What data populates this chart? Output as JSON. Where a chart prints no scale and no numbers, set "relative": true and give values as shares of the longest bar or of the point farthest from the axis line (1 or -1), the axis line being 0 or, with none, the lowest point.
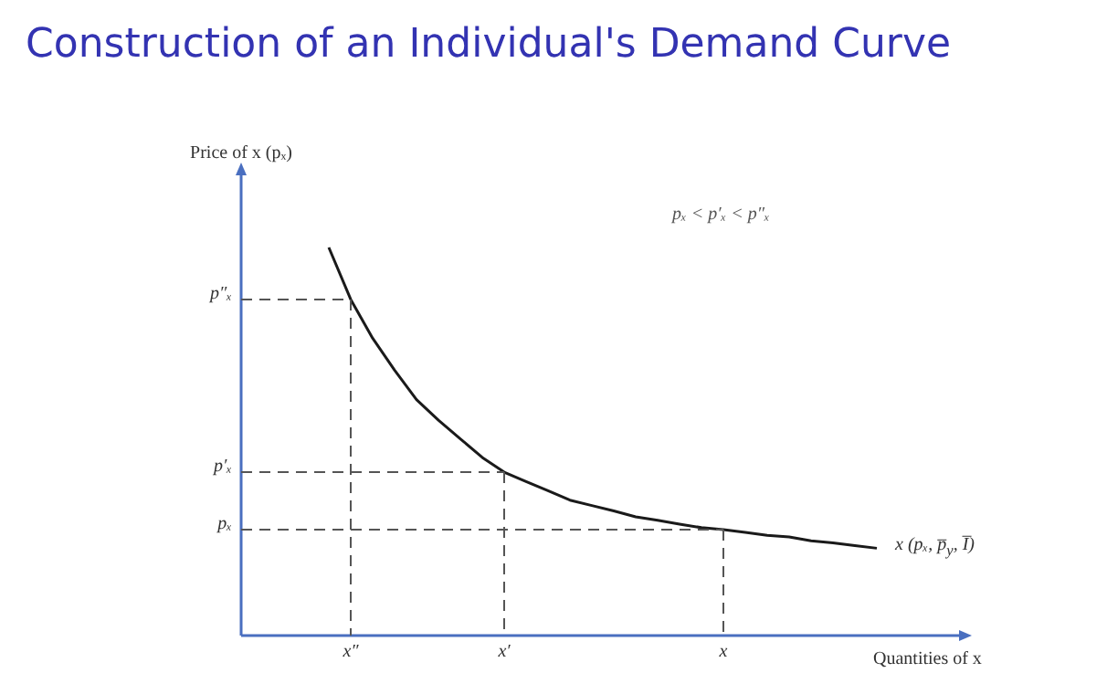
{
  "chart_data": {
    "type": "line",
    "title": "Construction of an Individual's Demand Curve",
    "ylabel": "Price of x (pₓ)",
    "xlabel": "Quantities of x",
    "relative": true,
    "legend": false,
    "marker": "none",
    "line_style": "solid",
    "categories": [
      null,
      "x″",
      null,
      null,
      null,
      null,
      null,
      null,
      "x′",
      null,
      null,
      null,
      null,
      null,
      null,
      null,
      null,
      null,
      "x",
      null,
      null,
      null,
      null,
      null,
      null,
      null
    ],
    "series": [
      {
        "name": "x (pₓ, p̅$_{y}$, I̅)",
        "color": "#1a1a1a",
        "values": [
          1,
          0.866,
          0.766,
          0.684,
          0.608,
          0.555,
          0.507,
          0.459,
          0.421,
          0.397,
          0.373,
          0.349,
          0.335,
          0.321,
          0.306,
          0.297,
          0.287,
          0.278,
          0.273,
          0.266,
          0.258,
          0.254,
          0.244,
          0.239,
          0.232,
          0.225
        ]
      }
    ],
    "annotations": [
      "pₓ < p′ₓ < p″ₓ"
    ],
    "ref_lines": [
      {
        "axis": "y",
        "value": 0.866,
        "label": "p″ₓ",
        "color": "#555555",
        "line_style": "dashed"
      },
      {
        "axis": "y",
        "value": 0.421,
        "label": "p′ₓ",
        "color": "#555555",
        "line_style": "dashed"
      },
      {
        "axis": "y",
        "value": 0.273,
        "label": "pₓ",
        "color": "#555555",
        "line_style": "dashed"
      },
      {
        "axis": "x",
        "value": "x″",
        "color": "#555555",
        "line_style": "dashed"
      },
      {
        "axis": "x",
        "value": "x′",
        "color": "#555555",
        "line_style": "dashed"
      },
      {
        "axis": "x",
        "value": "x",
        "color": "#555555",
        "line_style": "dashed"
      }
    ]
  }
}
